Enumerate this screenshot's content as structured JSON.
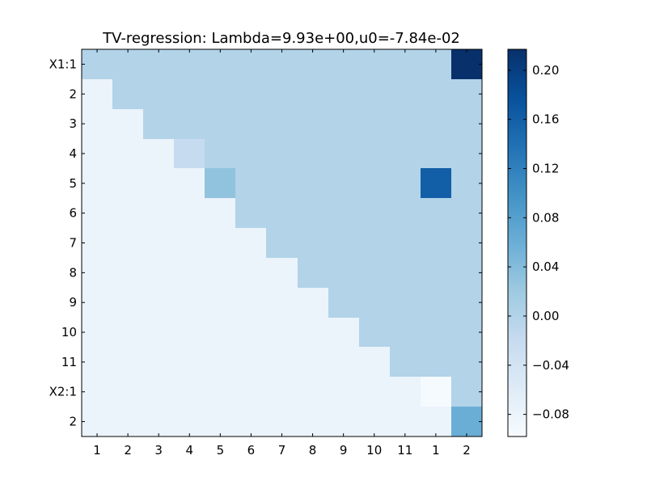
{
  "chart_data": {
    "type": "heatmap",
    "title": "TV-regression: Lambda=9.93e+00,u0=-7.84e-02",
    "xlabel": "",
    "ylabel": "",
    "x_tick_labels": [
      "1",
      "2",
      "3",
      "4",
      "5",
      "6",
      "7",
      "8",
      "9",
      "10",
      "11",
      "1",
      "2"
    ],
    "y_tick_labels": [
      "X1:1",
      "2",
      "3",
      "4",
      "5",
      "6",
      "7",
      "8",
      "9",
      "10",
      "11",
      "X2:1",
      "2"
    ],
    "colormap": "Blues",
    "colorbar": {
      "vmin": -0.098,
      "vmax": 0.217,
      "tick_values": [
        -0.08,
        -0.04,
        0.0,
        0.04,
        0.08,
        0.12,
        0.16,
        0.2
      ],
      "tick_labels": [
        "−0.08",
        "−0.04",
        "0.00",
        "0.04",
        "0.08",
        "0.12",
        "0.16",
        "0.20"
      ]
    },
    "background_value": -0.0784,
    "diagonal_cells": [
      {
        "row": 0,
        "col": 0,
        "value": 0.0
      },
      {
        "row": 1,
        "col": 1,
        "value": 0.0
      },
      {
        "row": 2,
        "col": 2,
        "value": 0.0
      },
      {
        "row": 3,
        "col": 3,
        "value": -0.02
      },
      {
        "row": 4,
        "col": 4,
        "value": 0.03
      },
      {
        "row": 5,
        "col": 5,
        "value": 0.0
      },
      {
        "row": 6,
        "col": 6,
        "value": 0.0
      },
      {
        "row": 7,
        "col": 7,
        "value": 0.0
      },
      {
        "row": 8,
        "col": 8,
        "value": 0.0
      },
      {
        "row": 9,
        "col": 9,
        "value": 0.0
      },
      {
        "row": 10,
        "col": 10,
        "value": 0.0
      },
      {
        "row": 11,
        "col": 11,
        "value": -0.095
      },
      {
        "row": 12,
        "col": 12,
        "value": 0.06
      }
    ],
    "upper_triangle_value": 0.0,
    "special_cells": [
      {
        "row": 0,
        "col": 12,
        "value": 0.217
      },
      {
        "row": 4,
        "col": 11,
        "value": 0.16
      }
    ],
    "grid": false
  }
}
